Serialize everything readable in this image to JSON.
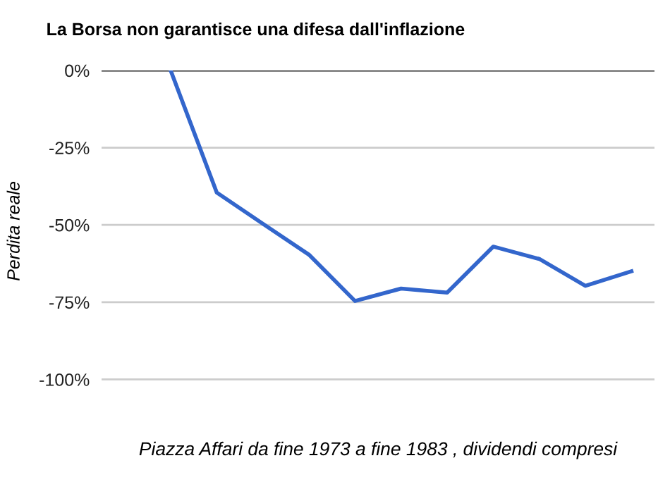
{
  "chart_data": {
    "type": "line",
    "title": "La Borsa non garantisce una difesa dall'inflazione",
    "xlabel": "Piazza Affari da fine 1973 a fine 1983 , dividendi compresi",
    "ylabel": "Perdita reale",
    "categories": [
      null,
      null,
      null,
      null,
      null,
      null,
      null,
      null,
      null,
      null,
      null,
      null
    ],
    "series": [
      {
        "color": "#3366cc",
        "values": [
          null,
          0,
          -39.5,
          -49.6,
          -59.6,
          -74.6,
          -70.6,
          -71.9,
          -57,
          -61,
          -69.7,
          -65
        ]
      }
    ],
    "ylim": [
      -100,
      0
    ],
    "yticks": [
      {
        "value": 0,
        "label": "0%"
      },
      {
        "value": -25,
        "label": "-25%"
      },
      {
        "value": -50,
        "label": "-50%"
      },
      {
        "value": -75,
        "label": "-75%"
      },
      {
        "value": -100,
        "label": "-100%"
      }
    ],
    "grid": "y",
    "marker": "none",
    "line_style": "solid",
    "ref_lines": [
      {
        "axis": "y",
        "value": 0,
        "color": "#333333"
      }
    ]
  }
}
